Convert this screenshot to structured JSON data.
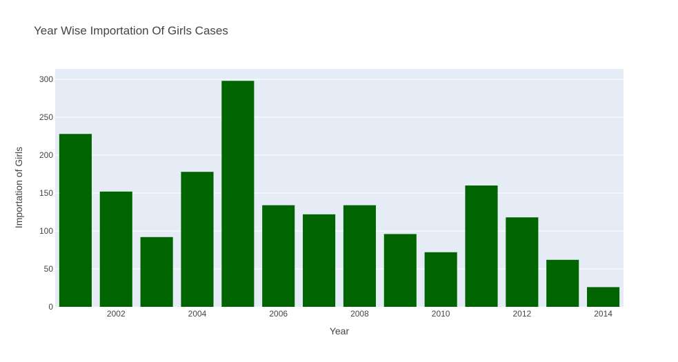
{
  "chart_data": {
    "type": "bar",
    "title": "Year Wise Importation Of Girls Cases",
    "xlabel": "Year",
    "ylabel": "Importation of Girls",
    "categories": [
      2001,
      2002,
      2003,
      2004,
      2005,
      2006,
      2007,
      2008,
      2009,
      2010,
      2011,
      2012,
      2013,
      2014
    ],
    "values": [
      228,
      152,
      92,
      178,
      298,
      134,
      122,
      134,
      96,
      72,
      160,
      118,
      62,
      26
    ],
    "xticks": [
      "2002",
      "2004",
      "2006",
      "2008",
      "2010",
      "2012",
      "2014"
    ],
    "xtick_values": [
      2002,
      2004,
      2006,
      2008,
      2010,
      2012,
      2014
    ],
    "yticks": [
      "0",
      "50",
      "100",
      "150",
      "200",
      "250",
      "300"
    ],
    "ytick_values": [
      0,
      50,
      100,
      150,
      200,
      250,
      300
    ],
    "ylim": [
      0,
      313.7
    ],
    "xlim": [
      2000.5,
      2014.5
    ],
    "grid": true,
    "bar_color": "#006400",
    "plot_background": "#e5ecf6",
    "grid_color": "#ffffff"
  }
}
